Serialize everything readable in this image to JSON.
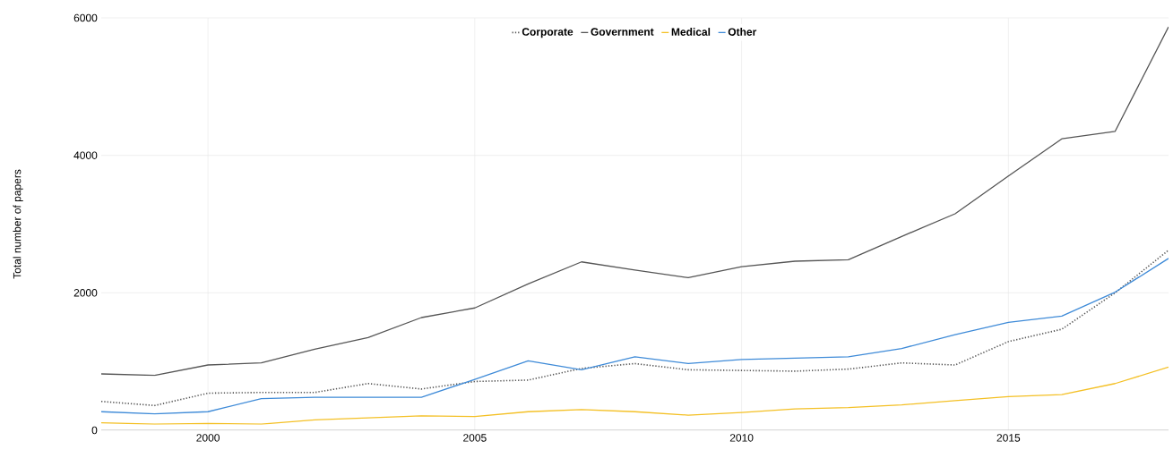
{
  "chart_data": {
    "type": "line",
    "ylabel": "Total number of papers",
    "x": [
      1998,
      1999,
      2000,
      2001,
      2002,
      2003,
      2004,
      2005,
      2006,
      2007,
      2008,
      2009,
      2010,
      2011,
      2012,
      2013,
      2014,
      2015,
      2016,
      2017,
      2018
    ],
    "xlim": [
      1998,
      2018
    ],
    "xticks": [
      2000,
      2005,
      2010,
      2015
    ],
    "ylim": [
      0,
      6000
    ],
    "yticks": [
      0,
      2000,
      4000,
      6000
    ],
    "grid": true,
    "legend": "top",
    "marker": "none",
    "series": [
      {
        "name": "Corporate",
        "color": "#555555",
        "line_style": "dotted",
        "values": [
          420,
          360,
          540,
          550,
          550,
          680,
          600,
          710,
          730,
          900,
          970,
          880,
          870,
          860,
          890,
          980,
          950,
          1290,
          1470,
          2000,
          2620
        ]
      },
      {
        "name": "Government",
        "color": "#555555",
        "line_style": "solid",
        "values": [
          820,
          800,
          950,
          980,
          1180,
          1350,
          1640,
          1780,
          2130,
          2450,
          2330,
          2220,
          2380,
          2460,
          2480,
          2820,
          3150,
          3700,
          4240,
          4350,
          5870
        ]
      },
      {
        "name": "Medical",
        "color": "#f4c025",
        "line_style": "solid",
        "values": [
          110,
          90,
          100,
          90,
          150,
          180,
          210,
          200,
          270,
          300,
          270,
          220,
          260,
          310,
          330,
          370,
          430,
          490,
          520,
          680,
          920
        ]
      },
      {
        "name": "Other",
        "color": "#3f8bd8",
        "line_style": "solid",
        "values": [
          270,
          240,
          270,
          460,
          480,
          480,
          480,
          740,
          1010,
          880,
          1070,
          970,
          1030,
          1050,
          1070,
          1190,
          1390,
          1570,
          1660,
          2010,
          2500
        ]
      }
    ]
  }
}
